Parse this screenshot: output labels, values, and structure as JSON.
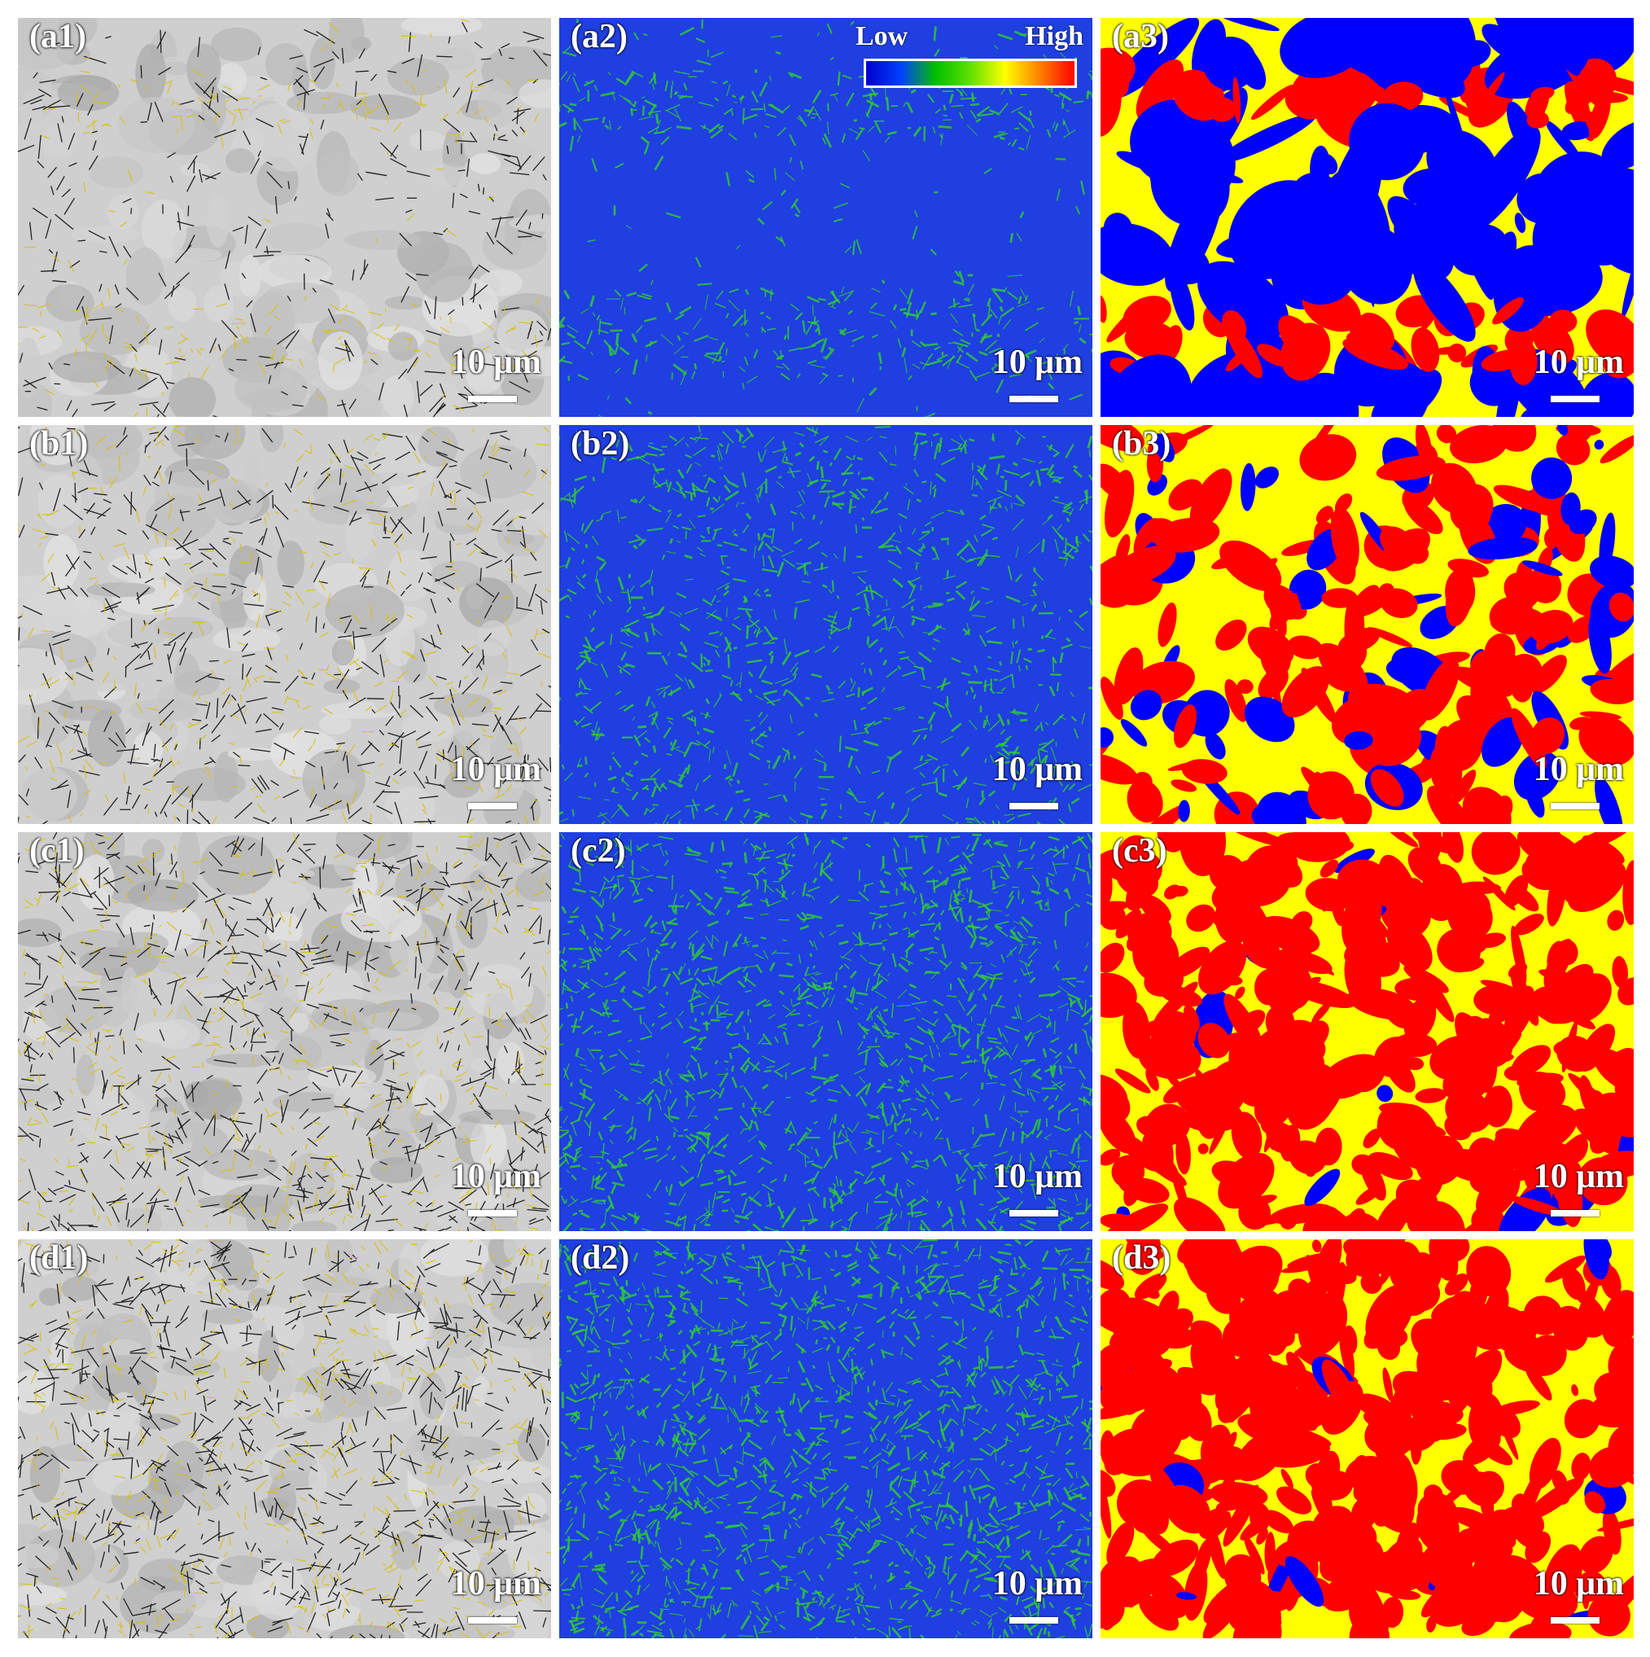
{
  "panels": [
    {
      "label": "(a1)",
      "type": "band",
      "row": 0,
      "col": 0,
      "scale": "10 μm"
    },
    {
      "label": "(a2)",
      "type": "kam",
      "row": 0,
      "col": 1,
      "scale": "10 μm",
      "colorbar": {
        "low": "Low",
        "high": "High"
      }
    },
    {
      "label": "(a3)",
      "type": "phase",
      "row": 0,
      "col": 2,
      "scale": "10 μm"
    },
    {
      "label": "(b1)",
      "type": "band",
      "row": 1,
      "col": 0,
      "scale": "10 μm"
    },
    {
      "label": "(b2)",
      "type": "kam",
      "row": 1,
      "col": 1,
      "scale": "10 μm"
    },
    {
      "label": "(b3)",
      "type": "phase",
      "row": 1,
      "col": 2,
      "scale": "10 μm"
    },
    {
      "label": "(c1)",
      "type": "band",
      "row": 2,
      "col": 0,
      "scale": "10 μm"
    },
    {
      "label": "(c2)",
      "type": "kam",
      "row": 2,
      "col": 1,
      "scale": "10 μm"
    },
    {
      "label": "(c3)",
      "type": "phase",
      "row": 2,
      "col": 2,
      "scale": "10 μm"
    },
    {
      "label": "(d1)",
      "type": "band",
      "row": 3,
      "col": 0,
      "scale": "10 μm"
    },
    {
      "label": "(d2)",
      "type": "kam",
      "row": 3,
      "col": 1,
      "scale": "10 μm"
    },
    {
      "label": "(d3)",
      "type": "phase",
      "row": 3,
      "col": 2,
      "scale": "10 μm"
    }
  ],
  "colors": {
    "band_bg": "#cfcfcf",
    "boundary_yellow": "#d8c000",
    "kam_low": "#1f3fe0",
    "kam_mid": "#30d030",
    "phase_blue": "#0000ff",
    "phase_yellow": "#ffff00",
    "phase_red": "#ff0000"
  }
}
